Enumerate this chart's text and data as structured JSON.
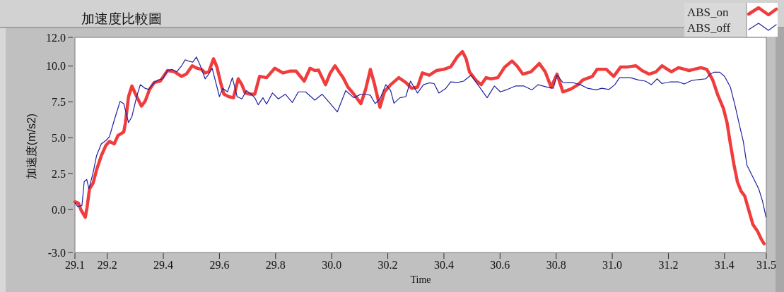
{
  "chart_data": {
    "type": "line",
    "title": "加速度比較圖",
    "xlabel": "Time",
    "ylabel": "加速度(m/s2)",
    "xlim": [
      29.085,
      31.549
    ],
    "ylim": [
      -3,
      12
    ],
    "xticks": [
      {
        "value": 29.085,
        "label": "29.1"
      },
      29.2,
      29.4,
      29.6,
      29.8,
      {
        "value": 30,
        "label": "30.0"
      },
      30.2,
      30.4,
      30.6,
      30.8,
      {
        "value": 31,
        "label": "31.0"
      },
      31.2,
      31.4,
      {
        "value": 31.549,
        "label": "31.5"
      }
    ],
    "yticks": [
      {
        "value": -3,
        "label": "-3.0"
      },
      {
        "value": 0,
        "label": "0.0"
      },
      2.5,
      {
        "value": 5,
        "label": "5.0"
      },
      7.5,
      {
        "value": 10,
        "label": "10.0"
      },
      {
        "value": 12,
        "label": "12.0"
      }
    ],
    "legend": "top right",
    "series": [
      {
        "name": "ABS_on",
        "color": "#f03c3c",
        "x": [
          29.085,
          29.097,
          29.107,
          29.122,
          29.128,
          29.137,
          29.15,
          29.162,
          29.179,
          29.196,
          29.208,
          29.225,
          29.238,
          29.259,
          29.265,
          29.276,
          29.288,
          29.301,
          29.322,
          29.335,
          29.351,
          29.368,
          29.389,
          29.415,
          29.44,
          29.465,
          29.482,
          29.503,
          29.52,
          29.536,
          29.549,
          29.562,
          29.579,
          29.591,
          29.604,
          29.616,
          29.633,
          29.65,
          29.667,
          29.68,
          29.692,
          29.709,
          29.726,
          29.743,
          29.768,
          29.797,
          29.827,
          29.852,
          29.873,
          29.902,
          29.923,
          29.94,
          29.953,
          29.978,
          29.995,
          30.012,
          30.029,
          30.041,
          30.058,
          30.079,
          30.104,
          30.121,
          30.138,
          30.151,
          30.172,
          30.188,
          30.21,
          30.239,
          30.264,
          30.285,
          30.306,
          30.323,
          30.348,
          30.374,
          30.399,
          30.424,
          30.449,
          30.466,
          30.479,
          30.491,
          30.517,
          30.533,
          30.55,
          30.567,
          30.592,
          30.617,
          30.643,
          30.66,
          30.681,
          30.71,
          30.74,
          30.761,
          30.782,
          30.803,
          30.824,
          30.853,
          30.878,
          30.895,
          30.929,
          30.946,
          30.979,
          31.005,
          31.03,
          31.055,
          31.084,
          31.106,
          31.131,
          31.156,
          31.177,
          31.211,
          31.236,
          31.274,
          31.316,
          31.337,
          31.358,
          31.375,
          31.396,
          31.409,
          31.421,
          31.434,
          31.446,
          31.459,
          31.472,
          31.484,
          31.501,
          31.518,
          31.53,
          31.541
        ],
        "values": [
          0.53,
          0.45,
          -0.05,
          -0.54,
          0.12,
          1.44,
          1.85,
          2.76,
          3.75,
          4.49,
          4.74,
          4.57,
          5.15,
          5.4,
          6.06,
          7.87,
          8.61,
          8.04,
          7.21,
          7.54,
          8.37,
          8.86,
          8.95,
          9.69,
          9.6,
          9.28,
          9.44,
          10.02,
          9.85,
          9.77,
          9.52,
          9.6,
          10.51,
          9.94,
          8.86,
          8.04,
          7.87,
          7.79,
          9.11,
          8.7,
          8.12,
          8.04,
          8.04,
          9.28,
          9.19,
          9.85,
          9.52,
          9.65,
          9.65,
          8.95,
          9.85,
          9.69,
          9.72,
          8.7,
          9.52,
          10.02,
          9.52,
          9.19,
          8.53,
          8.04,
          7.38,
          8.37,
          9.77,
          8.86,
          7.13,
          8.2,
          8.7,
          9.19,
          8.86,
          8.45,
          8.53,
          9.52,
          9.36,
          9.69,
          9.77,
          9.94,
          10.68,
          11.01,
          10.51,
          9.6,
          8.95,
          8.7,
          9.19,
          9.11,
          9.19,
          9.94,
          10.35,
          10.02,
          9.44,
          9.6,
          10.18,
          9.6,
          8.53,
          9.44,
          8.2,
          8.4,
          8.7,
          9.03,
          9.28,
          9.77,
          9.77,
          9.28,
          9.94,
          9.94,
          10.02,
          9.69,
          9.44,
          9.6,
          10.02,
          9.6,
          9.89,
          9.69,
          9.89,
          9.77,
          9.03,
          8.04,
          7.05,
          6.06,
          4.57,
          3.09,
          1.93,
          1.27,
          0.94,
          0.12,
          -1.04,
          -1.53,
          -2.03,
          -2.39
        ]
      },
      {
        "name": "ABS_off",
        "color": "#2020a0",
        "x": [
          29.085,
          29.095,
          29.11,
          29.118,
          29.127,
          29.135,
          29.15,
          29.162,
          29.179,
          29.196,
          29.208,
          29.225,
          29.246,
          29.259,
          29.276,
          29.288,
          29.305,
          29.318,
          29.335,
          29.347,
          29.368,
          29.381,
          29.398,
          29.415,
          29.431,
          29.448,
          29.465,
          29.478,
          29.49,
          29.505,
          29.518,
          29.532,
          29.549,
          29.562,
          29.574,
          29.6,
          29.612,
          29.629,
          29.646,
          29.663,
          29.68,
          29.696,
          29.713,
          29.726,
          29.738,
          29.755,
          29.768,
          29.789,
          29.81,
          29.835,
          29.86,
          29.881,
          29.907,
          29.94,
          29.966,
          29.995,
          30.02,
          30.05,
          30.079,
          30.104,
          30.121,
          30.138,
          30.155,
          30.172,
          30.193,
          30.21,
          30.222,
          30.243,
          30.264,
          30.281,
          30.306,
          30.327,
          30.348,
          30.365,
          30.382,
          30.407,
          30.424,
          30.449,
          30.47,
          30.496,
          30.521,
          30.554,
          30.58,
          30.601,
          30.626,
          30.655,
          30.685,
          30.714,
          30.735,
          30.769,
          30.79,
          30.803,
          30.824,
          30.862,
          30.887,
          30.912,
          30.942,
          30.963,
          30.988,
          31.009,
          31.026,
          31.064,
          31.093,
          31.118,
          31.139,
          31.16,
          31.177,
          31.207,
          31.236,
          31.257,
          31.282,
          31.308,
          31.333,
          31.349,
          31.362,
          31.383,
          31.4,
          31.421,
          31.438,
          31.455,
          31.467,
          31.48,
          31.501,
          31.522,
          31.535,
          31.548
        ],
        "values": [
          0.45,
          0.2,
          0.28,
          1.93,
          2.1,
          1.44,
          2.59,
          3.75,
          4.57,
          4.82,
          5.07,
          6.22,
          7.54,
          7.38,
          6.06,
          6.47,
          7.87,
          8.7,
          8.45,
          8.37,
          8.86,
          9.03,
          9.11,
          9.69,
          9.77,
          9.6,
          10.02,
          10.43,
          10.35,
          10.27,
          10.63,
          10.02,
          9.11,
          9.44,
          9.85,
          7.87,
          8.45,
          8.2,
          9.19,
          7.87,
          7.71,
          8.29,
          8.04,
          7.79,
          7.3,
          7.79,
          7.35,
          8.12,
          7.71,
          8.04,
          7.46,
          8.2,
          8.2,
          7.62,
          8.04,
          7.38,
          6.8,
          8.29,
          7.79,
          8.04,
          8.04,
          7.96,
          7.38,
          7.71,
          8.7,
          8.29,
          7.41,
          7.79,
          7.87,
          8.95,
          8.12,
          8.7,
          8.83,
          8.78,
          8.12,
          8.45,
          8.9,
          8.86,
          8.95,
          9.36,
          8.7,
          7.79,
          8.61,
          8.2,
          8.37,
          8.61,
          8.61,
          8.34,
          8.7,
          8.53,
          8.45,
          9.36,
          8.86,
          8.83,
          8.7,
          8.45,
          8.34,
          8.45,
          8.37,
          8.7,
          9.19,
          9.19,
          9.03,
          8.95,
          8.7,
          9.11,
          8.78,
          8.9,
          8.9,
          8.75,
          8.99,
          9.06,
          9.11,
          9.44,
          9.57,
          9.57,
          9.28,
          8.53,
          7.21,
          5.73,
          4.74,
          3.09,
          2.26,
          1.44,
          0.61,
          -0.54
        ]
      }
    ]
  }
}
